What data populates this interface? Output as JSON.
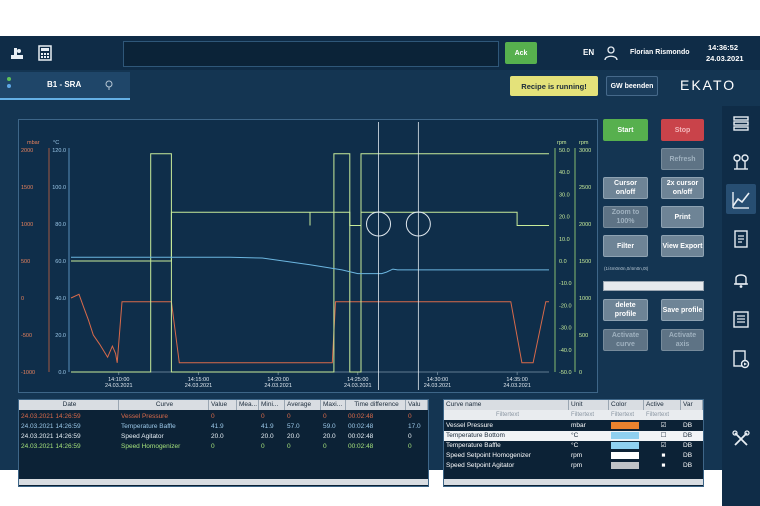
{
  "header": {
    "ack_label": "Ack",
    "language": "EN",
    "user_name": "Florian Rismondo",
    "time": "14:36:52",
    "date": "24.03.2021"
  },
  "second_bar": {
    "tab_label": "B1 - SRA",
    "recipe_status": "Recipe is running!",
    "gw_button": "GW beenden",
    "brand": "EKATO"
  },
  "chart_controls": {
    "start": "Start",
    "stop": "Stop",
    "refresh": "Refresh",
    "cursor": "Cursor on/off",
    "cursor2x": "2x cursor on/off",
    "zoom": "Zoom to 100%",
    "print": "Print",
    "filter": "Filter",
    "view_export": "View Export",
    "filter_info": "(1/4m0n0n,0/4m0n,0t)",
    "delete_profile": "delete profile",
    "save_profile": "Save profile",
    "activate_curve": "Activate curve",
    "activate_axis": "Activate axis"
  },
  "chart_data": {
    "type": "line",
    "axes": {
      "left_mbar": {
        "label": "mbar",
        "ticks": [
          "2000",
          "1500",
          "1000",
          "500",
          "0",
          "-500",
          "-1000"
        ]
      },
      "left_celsius": {
        "label": "°C",
        "ticks": [
          "120.0",
          "100.0",
          "80.0",
          "60.0",
          "40.0",
          "20.0",
          "0.0"
        ]
      },
      "right_rpm1": {
        "label": "rpm",
        "ticks": [
          "50.0",
          "40.0",
          "30.0",
          "20.0",
          "10.0",
          "0.0",
          "-10.0",
          "-20.0",
          "-30.0",
          "-40.0",
          "-50.0"
        ]
      },
      "right_rpm2": {
        "label": "rpm",
        "ticks": [
          "3000",
          "2500",
          "2000",
          "1500",
          "1000",
          "500",
          "0"
        ]
      }
    },
    "x_ticks": [
      {
        "time": "14:10:00",
        "date": "24.03.2021"
      },
      {
        "time": "14:15:00",
        "date": "24.03.2021"
      },
      {
        "time": "14:20:00",
        "date": "24.03.2021"
      },
      {
        "time": "14:25:00",
        "date": "24.03.2021"
      },
      {
        "time": "14:30:00",
        "date": "24.03.2021"
      },
      {
        "time": "14:35:00",
        "date": "24.03.2021"
      }
    ],
    "x_range_minutes": [
      0,
      30
    ],
    "series": [
      {
        "color": "#d96a4a",
        "axis": "left_celsius",
        "points": [
          [
            0,
            40
          ],
          [
            0.5,
            42
          ],
          [
            0.8,
            35
          ],
          [
            1.1,
            28
          ],
          [
            1.4,
            20
          ],
          [
            1.8,
            15
          ],
          [
            2.3,
            8
          ],
          [
            2.6,
            14
          ],
          [
            2.8,
            10
          ],
          [
            2.9,
            5
          ],
          [
            3.2,
            38
          ],
          [
            5.0,
            38
          ],
          [
            5.1,
            38
          ],
          [
            6.3,
            38
          ],
          [
            6.8,
            5
          ],
          [
            15,
            5
          ],
          [
            16.4,
            5
          ],
          [
            16.6,
            38
          ],
          [
            18.0,
            38
          ],
          [
            19.5,
            38
          ],
          [
            19.6,
            38
          ],
          [
            23,
            38
          ],
          [
            27.5,
            38
          ],
          [
            27.6,
            38
          ],
          [
            28.3,
            5
          ],
          [
            29,
            5
          ],
          [
            29.8,
            38
          ],
          [
            30,
            38
          ]
        ]
      },
      {
        "color": "#c8ec9a",
        "axis": "right_rpm2",
        "points": [
          [
            0,
            0
          ],
          [
            5,
            0
          ],
          [
            5.0,
            2950
          ],
          [
            6.3,
            2950
          ],
          [
            6.3,
            0
          ],
          [
            16.5,
            0
          ],
          [
            16.5,
            2950
          ],
          [
            17.5,
            2950
          ],
          [
            17.5,
            0
          ],
          [
            18.2,
            0
          ],
          [
            18.2,
            2950
          ],
          [
            30,
            2950
          ]
        ]
      },
      {
        "color": "#c8ec9a",
        "axis": "right_rpm1",
        "points": [
          [
            0,
            0
          ],
          [
            6.3,
            0
          ],
          [
            6.3,
            22
          ],
          [
            15,
            22
          ],
          [
            15,
            16
          ],
          [
            15,
            22
          ],
          [
            17.5,
            22
          ],
          [
            17.5,
            16
          ],
          [
            18.2,
            16
          ],
          [
            18.2,
            22
          ],
          [
            28,
            22
          ],
          [
            28,
            16
          ],
          [
            30,
            16
          ]
        ]
      },
      {
        "color": "#6cb6e0",
        "axis": "left_mbar",
        "points": [
          [
            0,
            550
          ],
          [
            5,
            550
          ],
          [
            10,
            550
          ],
          [
            12,
            540
          ],
          [
            15,
            450
          ],
          [
            17,
            380
          ],
          [
            18,
            330
          ],
          [
            19.5,
            330
          ],
          [
            19.8,
            350
          ],
          [
            20.2,
            390
          ],
          [
            20.5,
            380
          ],
          [
            22,
            380
          ],
          [
            25,
            380
          ],
          [
            30,
            380
          ]
        ]
      }
    ],
    "cursors_minutes": [
      19.3,
      21.8
    ],
    "grid": false
  },
  "data_table": {
    "columns": [
      "Date",
      "Curve",
      "Value",
      "Mea...",
      "Mini...",
      "Average",
      "Maxi...",
      "Time difference",
      "Valu"
    ],
    "rows": [
      {
        "date": "24.03.2021 14:26:59",
        "curve": "Vessel Pressure",
        "value": "0",
        "mea": "",
        "min": "0",
        "avg": "0",
        "max": "0",
        "diff": "00:02:48",
        "valu": "0",
        "color": "#d96a4a"
      },
      {
        "date": "24.03.2021 14:26:59",
        "curve": "Temperature Baffle",
        "value": "41.9",
        "mea": "",
        "min": "41.9",
        "avg": "57.0",
        "max": "59.0",
        "diff": "00:02:48",
        "valu": "17.0",
        "color": "#9cc8e8"
      },
      {
        "date": "24.03.2021 14:26:59",
        "curve": "Speed Agitator",
        "value": "20.0",
        "mea": "",
        "min": "20.0",
        "avg": "20.0",
        "max": "20.0",
        "diff": "00:02:48",
        "valu": "0",
        "color": "#e8f0f6"
      },
      {
        "date": "24.03.2021 14:26:59",
        "curve": "Speed Homogenizer",
        "value": "0",
        "mea": "",
        "min": "0",
        "avg": "0",
        "max": "0",
        "diff": "00:02:48",
        "valu": "0",
        "color": "#a4e07a"
      }
    ]
  },
  "curve_table": {
    "columns": [
      "Curve name",
      "Unit",
      "Color",
      "Active",
      "Var"
    ],
    "filter_placeholder": "Filtertext",
    "rows": [
      {
        "name": "Vessel Pressure",
        "unit": "mbar",
        "color": "#e8822e",
        "active": "☑",
        "var": "DB"
      },
      {
        "name": "Temperature Bottom",
        "unit": "°C",
        "color": "#8fd0f0",
        "active": "☐",
        "var": "DB"
      },
      {
        "name": "Temperature Baffle",
        "unit": "°C",
        "color": "#8fd0f0",
        "active": "☑",
        "var": "DB"
      },
      {
        "name": "Speed Setpoint Homogenizer",
        "unit": "rpm",
        "color": "#ffffff",
        "active": "■",
        "var": "DB"
      },
      {
        "name": "Speed Setpoint Agitator",
        "unit": "rpm",
        "color": "#bfc3c7",
        "active": "■",
        "var": "DB"
      }
    ]
  },
  "side_icons": [
    "layers-icon",
    "instrument-icon",
    "trend-chart-icon",
    "document-icon",
    "alarm-bell-icon",
    "list-icon",
    "report-icon",
    "tools-icon"
  ]
}
